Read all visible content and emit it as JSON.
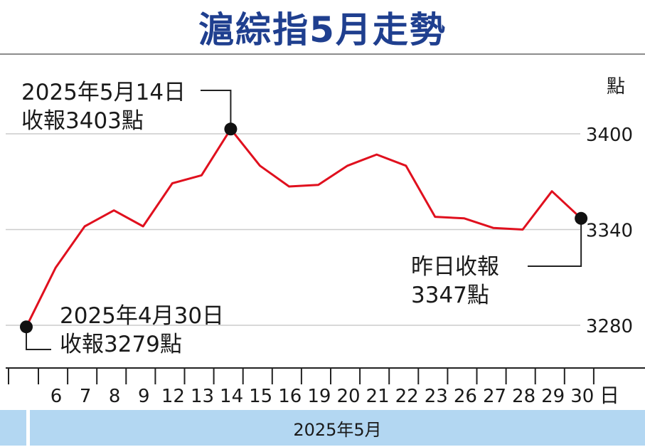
{
  "title": "滬綜指5月走勢",
  "unit_label": "點",
  "x_suffix": "日",
  "footer": "2025年5月",
  "annotations": {
    "start": {
      "line1": "2025年4月30日",
      "line2": "收報3279點"
    },
    "peak": {
      "line1": "2025年5月14日",
      "line2": "收報3403點"
    },
    "end": {
      "line1": "昨日收報",
      "line2": "3347點"
    }
  },
  "colors": {
    "line": "#e0101e",
    "title": "#1f3f8f",
    "footer_bg": "#b3d7f2",
    "grid": "#cccccc"
  },
  "chart_data": {
    "type": "line",
    "title": "滬綜指5月走勢",
    "ylabel": "點",
    "xlabel": "2025年5月",
    "ylim": [
      3250,
      3430
    ],
    "y_ticks": [
      3280,
      3340,
      3400
    ],
    "grid": true,
    "x_tick_labels": [
      "6",
      "7",
      "8",
      "9",
      "12",
      "13",
      "14",
      "15",
      "16",
      "19",
      "20",
      "21",
      "22",
      "23",
      "26",
      "27",
      "28",
      "29",
      "30"
    ],
    "x": [
      "2025-04-30",
      "5/6",
      "5/7",
      "5/8",
      "5/9",
      "5/12",
      "5/13",
      "5/14",
      "5/15",
      "5/16",
      "5/19",
      "5/20",
      "5/21",
      "5/22",
      "5/23",
      "5/26",
      "5/27",
      "5/28",
      "5/29",
      "5/30"
    ],
    "values": [
      3279,
      3316,
      3342,
      3352,
      3342,
      3369,
      3374,
      3403,
      3380,
      3367,
      3368,
      3380,
      3387,
      3380,
      3348,
      3347,
      3341,
      3340,
      3364,
      3347
    ]
  }
}
